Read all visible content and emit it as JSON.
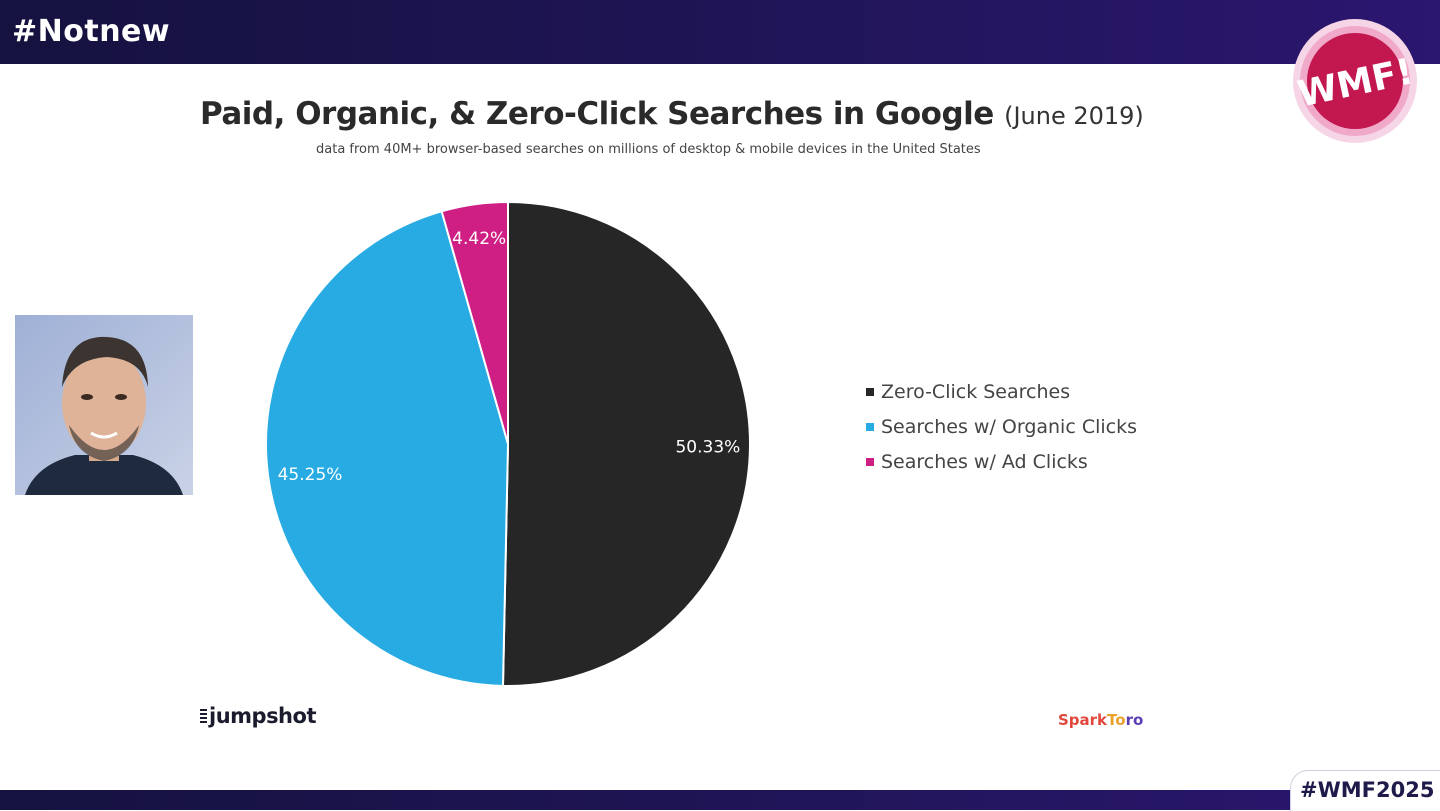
{
  "header": {
    "hashtag": "#Notnew"
  },
  "footer": {
    "hashtag": "#WMF2025"
  },
  "logo": {
    "letters": "WMF!"
  },
  "sources": {
    "left": "jumpshot",
    "right_parts": [
      "Spark",
      "To",
      "ro"
    ]
  },
  "colors": {
    "zero_click": "#262626",
    "organic": "#27abe2",
    "ad": "#d01f84",
    "header_bg": "#1e1552"
  },
  "chart_data": {
    "type": "pie",
    "title": "Paid, Organic, & Zero-Click Searches in Google",
    "title_date": "(June 2019)",
    "subtitle": "data from 40M+ browser-based searches on millions of desktop & mobile devices in the United States",
    "legend_position": "right",
    "slices": [
      {
        "name": "Zero-Click Searches",
        "value": 50.33,
        "label": "50.33%",
        "color": "#262626"
      },
      {
        "name": "Searches w/ Organic Clicks",
        "value": 45.25,
        "label": "45.25%",
        "color": "#27abe2"
      },
      {
        "name": "Searches w/ Ad Clicks",
        "value": 4.42,
        "label": "4.42%",
        "color": "#d01f84"
      }
    ]
  }
}
